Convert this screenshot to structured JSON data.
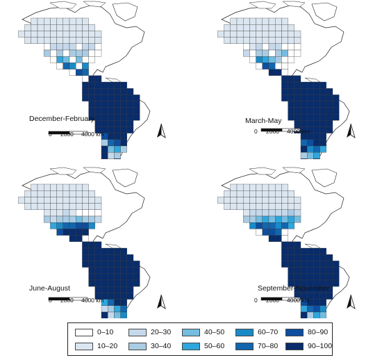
{
  "panels": [
    {
      "id": "dec-feb",
      "label": "December-February",
      "scale_labels": [
        "0",
        "2000",
        "4000 km"
      ],
      "cells": [
        {
          "col": 8,
          "row": 5,
          "cls": 2
        },
        {
          "col": 9,
          "row": 5,
          "cls": 2
        },
        {
          "col": 10,
          "row": 5,
          "cls": 2
        },
        {
          "col": 11,
          "row": 5,
          "cls": 2
        },
        {
          "col": 13,
          "row": 5,
          "cls": 2
        },
        {
          "col": 14,
          "row": 5,
          "cls": 2
        },
        {
          "col": 7,
          "row": 6,
          "cls": 3
        },
        {
          "col": 9,
          "row": 6,
          "cls": 3
        },
        {
          "col": 11,
          "row": 6,
          "cls": 3
        },
        {
          "col": 12,
          "row": 6,
          "cls": 3
        },
        {
          "col": 13,
          "row": 6,
          "cls": 3
        },
        {
          "col": 9,
          "row": 7,
          "cls": 5
        },
        {
          "col": 10,
          "row": 7,
          "cls": 4
        },
        {
          "col": 12,
          "row": 7,
          "cls": 4
        },
        {
          "col": 10,
          "row": 8,
          "cls": 7
        },
        {
          "col": 11,
          "row": 8,
          "cls": 6
        },
        {
          "col": 13,
          "row": 8,
          "cls": 6
        },
        {
          "col": 12,
          "row": 9,
          "cls": 8
        },
        {
          "col": 13,
          "row": 9,
          "cls": 7
        },
        {
          "col": 14,
          "row": 10,
          "cls": 9
        },
        {
          "col": 15,
          "row": 10,
          "cls": 9
        }
      ],
      "sa_light": [
        {
          "col": 17,
          "row": 22,
          "cls": 2
        },
        {
          "col": 18,
          "row": 22,
          "cls": 3
        },
        {
          "col": 18,
          "row": 21,
          "cls": 5
        },
        {
          "col": 17,
          "row": 21,
          "cls": 4
        },
        {
          "col": 19,
          "row": 21,
          "cls": 3
        },
        {
          "col": 16,
          "row": 20,
          "cls": 3
        },
        {
          "col": 17,
          "row": 20,
          "cls": 7
        },
        {
          "col": 18,
          "row": 20,
          "cls": 8
        },
        {
          "col": 16,
          "row": 19,
          "cls": 8
        },
        {
          "col": 16,
          "row": 18,
          "cls": 9
        },
        {
          "col": 17,
          "row": 23,
          "cls": 1
        }
      ]
    },
    {
      "id": "mar-may",
      "label": "March-May",
      "scale_labels": [
        "0",
        "2000",
        "4000 km"
      ],
      "cells": [
        {
          "col": 8,
          "row": 5,
          "cls": 1
        },
        {
          "col": 9,
          "row": 5,
          "cls": 2
        },
        {
          "col": 11,
          "row": 5,
          "cls": 2
        },
        {
          "col": 12,
          "row": 5,
          "cls": 2
        },
        {
          "col": 7,
          "row": 6,
          "cls": 2
        },
        {
          "col": 9,
          "row": 6,
          "cls": 3
        },
        {
          "col": 10,
          "row": 6,
          "cls": 3
        },
        {
          "col": 12,
          "row": 6,
          "cls": 3
        },
        {
          "col": 13,
          "row": 6,
          "cls": 4
        },
        {
          "col": 9,
          "row": 7,
          "cls": 6
        },
        {
          "col": 10,
          "row": 7,
          "cls": 5
        },
        {
          "col": 11,
          "row": 7,
          "cls": 4
        },
        {
          "col": 12,
          "row": 7,
          "cls": 3
        },
        {
          "col": 10,
          "row": 8,
          "cls": 8
        },
        {
          "col": 11,
          "row": 8,
          "cls": 7
        },
        {
          "col": 11,
          "row": 9,
          "cls": 9
        },
        {
          "col": 12,
          "row": 9,
          "cls": 9
        },
        {
          "col": 13,
          "row": 10,
          "cls": 9
        },
        {
          "col": 14,
          "row": 10,
          "cls": 9
        },
        {
          "col": 15,
          "row": 10,
          "cls": 9
        }
      ],
      "sa_light": [
        {
          "col": 17,
          "row": 22,
          "cls": 4
        },
        {
          "col": 18,
          "row": 22,
          "cls": 5
        },
        {
          "col": 17,
          "row": 21,
          "cls": 6
        },
        {
          "col": 18,
          "row": 21,
          "cls": 7
        },
        {
          "col": 19,
          "row": 21,
          "cls": 5
        },
        {
          "col": 16,
          "row": 20,
          "cls": 7
        },
        {
          "col": 17,
          "row": 20,
          "cls": 8
        },
        {
          "col": 18,
          "row": 20,
          "cls": 9
        },
        {
          "col": 16,
          "row": 19,
          "cls": 9
        },
        {
          "col": 17,
          "row": 23,
          "cls": 2
        },
        {
          "col": 16,
          "row": 22,
          "cls": 3
        }
      ]
    },
    {
      "id": "jun-aug",
      "label": "June-August",
      "scale_labels": [
        "0",
        "2000",
        "4000 km"
      ],
      "cells": [
        {
          "col": 7,
          "row": 5,
          "cls": 1
        },
        {
          "col": 8,
          "row": 5,
          "cls": 1
        },
        {
          "col": 9,
          "row": 5,
          "cls": 1
        },
        {
          "col": 10,
          "row": 5,
          "cls": 2
        },
        {
          "col": 11,
          "row": 5,
          "cls": 1
        },
        {
          "col": 7,
          "row": 6,
          "cls": 3
        },
        {
          "col": 8,
          "row": 6,
          "cls": 2
        },
        {
          "col": 9,
          "row": 6,
          "cls": 3
        },
        {
          "col": 10,
          "row": 6,
          "cls": 3
        },
        {
          "col": 11,
          "row": 6,
          "cls": 3
        },
        {
          "col": 12,
          "row": 6,
          "cls": 4
        },
        {
          "col": 13,
          "row": 6,
          "cls": 3
        },
        {
          "col": 14,
          "row": 6,
          "cls": 3
        },
        {
          "col": 15,
          "row": 6,
          "cls": 2
        },
        {
          "col": 8,
          "row": 7,
          "cls": 5
        },
        {
          "col": 9,
          "row": 7,
          "cls": 6
        },
        {
          "col": 10,
          "row": 7,
          "cls": 7
        },
        {
          "col": 11,
          "row": 7,
          "cls": 7
        },
        {
          "col": 12,
          "row": 7,
          "cls": 8
        },
        {
          "col": 13,
          "row": 7,
          "cls": 8
        },
        {
          "col": 14,
          "row": 7,
          "cls": 6
        },
        {
          "col": 9,
          "row": 8,
          "cls": 8
        },
        {
          "col": 10,
          "row": 8,
          "cls": 9
        },
        {
          "col": 11,
          "row": 8,
          "cls": 9
        },
        {
          "col": 12,
          "row": 8,
          "cls": 9
        },
        {
          "col": 13,
          "row": 8,
          "cls": 9
        },
        {
          "col": 10,
          "row": 9,
          "cls": 9
        },
        {
          "col": 11,
          "row": 9,
          "cls": 9
        },
        {
          "col": 12,
          "row": 9,
          "cls": 9
        },
        {
          "col": 13,
          "row": 10,
          "cls": 9
        },
        {
          "col": 14,
          "row": 10,
          "cls": 9
        },
        {
          "col": 15,
          "row": 10,
          "cls": 9
        }
      ],
      "sa_light": [
        {
          "col": 17,
          "row": 22,
          "cls": 1
        },
        {
          "col": 16,
          "row": 22,
          "cls": 1
        },
        {
          "col": 17,
          "row": 21,
          "cls": 2
        },
        {
          "col": 18,
          "row": 21,
          "cls": 4
        },
        {
          "col": 19,
          "row": 21,
          "cls": 6
        },
        {
          "col": 16,
          "row": 20,
          "cls": 2
        },
        {
          "col": 17,
          "row": 20,
          "cls": 3
        },
        {
          "col": 18,
          "row": 20,
          "cls": 5
        },
        {
          "col": 19,
          "row": 20,
          "cls": 7
        },
        {
          "col": 16,
          "row": 19,
          "cls": 5
        },
        {
          "col": 17,
          "row": 19,
          "cls": 7
        },
        {
          "col": 17,
          "row": 23,
          "cls": 1
        }
      ]
    },
    {
      "id": "sep-nov",
      "label": "September-November",
      "scale_labels": [
        "0",
        "2000",
        "4000 km"
      ],
      "cells": [
        {
          "col": 8,
          "row": 4,
          "cls": 1
        },
        {
          "col": 9,
          "row": 4,
          "cls": 1
        },
        {
          "col": 10,
          "row": 4,
          "cls": 1
        },
        {
          "col": 11,
          "row": 4,
          "cls": 1
        },
        {
          "col": 12,
          "row": 4,
          "cls": 1
        },
        {
          "col": 13,
          "row": 4,
          "cls": 1
        },
        {
          "col": 14,
          "row": 4,
          "cls": 1
        },
        {
          "col": 7,
          "row": 5,
          "cls": 1
        },
        {
          "col": 8,
          "row": 5,
          "cls": 2
        },
        {
          "col": 9,
          "row": 5,
          "cls": 2
        },
        {
          "col": 10,
          "row": 5,
          "cls": 2
        },
        {
          "col": 11,
          "row": 5,
          "cls": 2
        },
        {
          "col": 12,
          "row": 5,
          "cls": 2
        },
        {
          "col": 13,
          "row": 5,
          "cls": 2
        },
        {
          "col": 14,
          "row": 5,
          "cls": 3
        },
        {
          "col": 15,
          "row": 5,
          "cls": 2
        },
        {
          "col": 7,
          "row": 6,
          "cls": 3
        },
        {
          "col": 8,
          "row": 6,
          "cls": 3
        },
        {
          "col": 9,
          "row": 6,
          "cls": 4
        },
        {
          "col": 10,
          "row": 6,
          "cls": 5
        },
        {
          "col": 11,
          "row": 6,
          "cls": 4
        },
        {
          "col": 12,
          "row": 6,
          "cls": 5
        },
        {
          "col": 13,
          "row": 6,
          "cls": 4
        },
        {
          "col": 14,
          "row": 6,
          "cls": 5
        },
        {
          "col": 15,
          "row": 6,
          "cls": 4
        },
        {
          "col": 8,
          "row": 7,
          "cls": 6
        },
        {
          "col": 9,
          "row": 7,
          "cls": 8
        },
        {
          "col": 10,
          "row": 7,
          "cls": 7
        },
        {
          "col": 11,
          "row": 7,
          "cls": 7
        },
        {
          "col": 12,
          "row": 7,
          "cls": 6
        },
        {
          "col": 13,
          "row": 7,
          "cls": 7
        },
        {
          "col": 14,
          "row": 7,
          "cls": 5
        },
        {
          "col": 10,
          "row": 8,
          "cls": 8
        },
        {
          "col": 11,
          "row": 8,
          "cls": 8
        },
        {
          "col": 12,
          "row": 8,
          "cls": 7
        },
        {
          "col": 11,
          "row": 9,
          "cls": 9
        },
        {
          "col": 12,
          "row": 9,
          "cls": 9
        },
        {
          "col": 13,
          "row": 10,
          "cls": 9
        },
        {
          "col": 14,
          "row": 10,
          "cls": 9
        },
        {
          "col": 15,
          "row": 10,
          "cls": 9
        }
      ],
      "sa_light": [
        {
          "col": 17,
          "row": 22,
          "cls": 1
        },
        {
          "col": 16,
          "row": 22,
          "cls": 2
        },
        {
          "col": 17,
          "row": 21,
          "cls": 3
        },
        {
          "col": 18,
          "row": 21,
          "cls": 5
        },
        {
          "col": 19,
          "row": 21,
          "cls": 4
        },
        {
          "col": 16,
          "row": 20,
          "cls": 5
        },
        {
          "col": 17,
          "row": 20,
          "cls": 7
        },
        {
          "col": 18,
          "row": 20,
          "cls": 8
        },
        {
          "col": 19,
          "row": 20,
          "cls": 6
        },
        {
          "col": 16,
          "row": 19,
          "cls": 8
        },
        {
          "col": 17,
          "row": 23,
          "cls": 1
        }
      ]
    }
  ],
  "legend": {
    "items": [
      {
        "label": "0–10",
        "color": "#ffffff"
      },
      {
        "label": "10–20",
        "color": "#dbe6f1"
      },
      {
        "label": "20–30",
        "color": "#c6d9ec"
      },
      {
        "label": "30–40",
        "color": "#a9cce3"
      },
      {
        "label": "40–50",
        "color": "#74bde0"
      },
      {
        "label": "50–60",
        "color": "#2fa6dc"
      },
      {
        "label": "60–70",
        "color": "#1a8ac7"
      },
      {
        "label": "70–80",
        "color": "#1366ad"
      },
      {
        "label": "80–90",
        "color": "#0d4ea0"
      },
      {
        "label": "90–100",
        "color": "#092c6a"
      }
    ]
  },
  "icons": {
    "north_arrow": "north-arrow-icon"
  }
}
